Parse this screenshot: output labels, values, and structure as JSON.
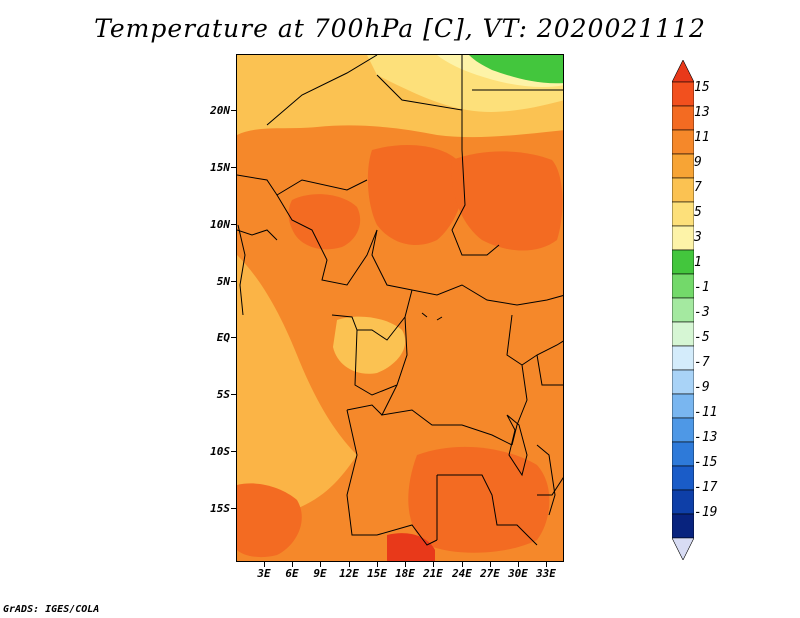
{
  "title": "Temperature at 700hPa [C], VT: 2020021112",
  "credit": "GrADS: IGES/COLA",
  "lat_labels": [
    "20N",
    "15N",
    "10N",
    "5N",
    "EQ",
    "5S",
    "10S",
    "15S"
  ],
  "lon_labels": [
    "3E",
    "6E",
    "9E",
    "12E",
    "15E",
    "18E",
    "21E",
    "24E",
    "27E",
    "30E",
    "33E"
  ],
  "colorbar": {
    "labels": [
      "15",
      "13",
      "11",
      "9",
      "7",
      "5",
      "3",
      "1",
      "-1",
      "-3",
      "-5",
      "-7",
      "-9",
      "-11",
      "-13",
      "-15",
      "-17",
      "-19"
    ],
    "colors": [
      "#e8391a",
      "#f2501e",
      "#f36b22",
      "#f5882a",
      "#f7a435",
      "#fbc252",
      "#fde07a",
      "#fdf3a8",
      "#43c63d",
      "#73d96a",
      "#a4e9a0",
      "#d6f6d4",
      "#d4ecfb",
      "#a9d3f7",
      "#79b6f0",
      "#4e98e6",
      "#2e7ad9",
      "#1a5cc8",
      "#0e3fa8",
      "#08237e",
      "#d8dcf4"
    ]
  }
}
